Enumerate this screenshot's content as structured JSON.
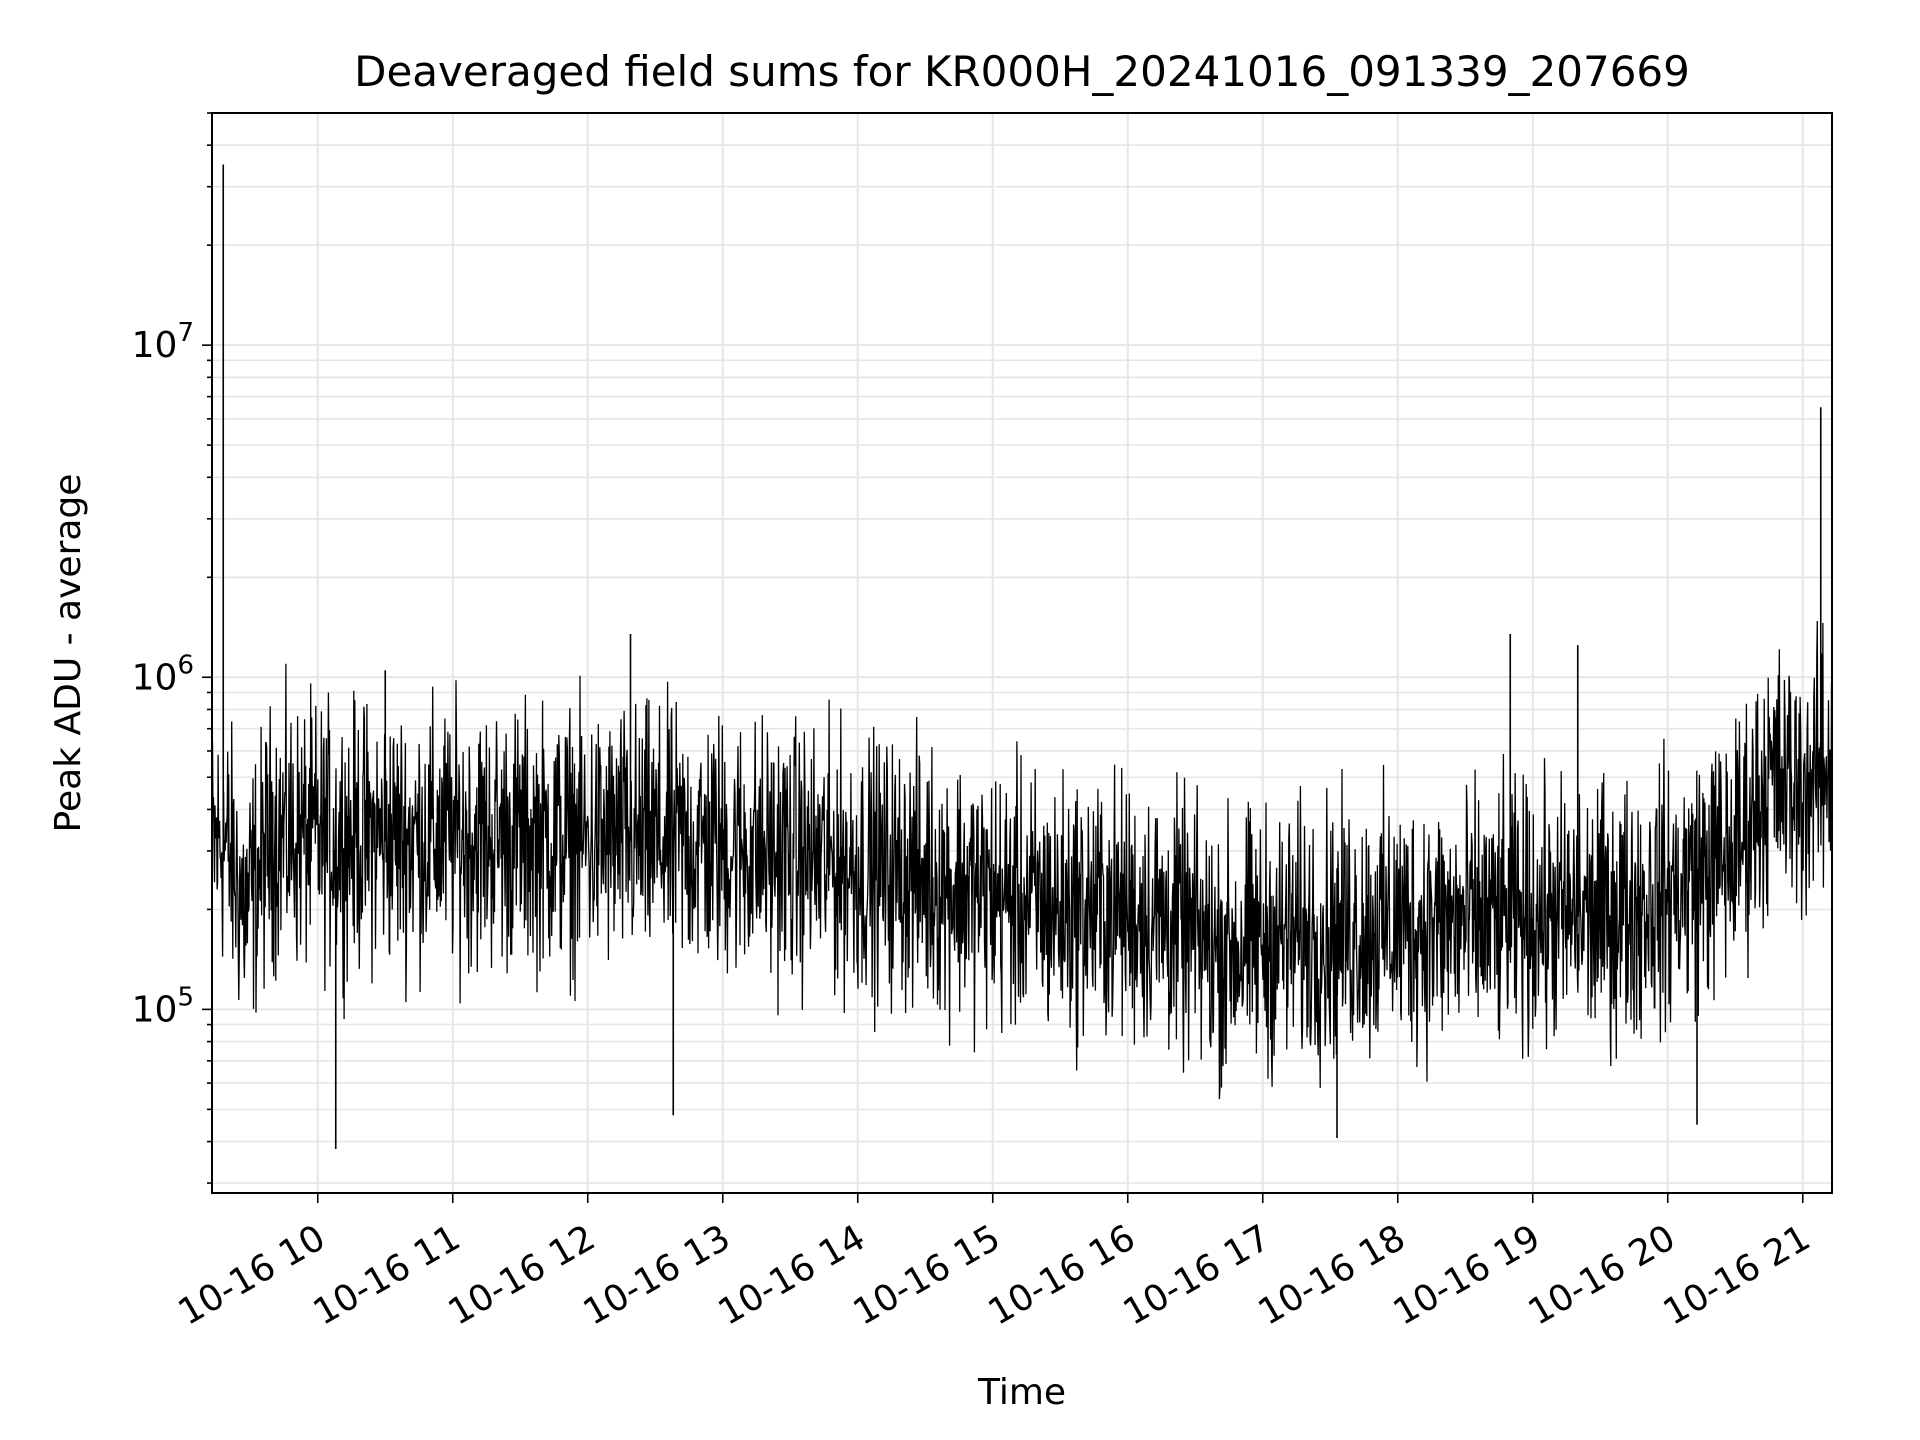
{
  "chart_data": {
    "type": "line",
    "title": "Deaveraged field sums for KR000H_20241016_091339_207669",
    "xlabel": "Time",
    "ylabel": "Peak ADU - average",
    "yscale": "log",
    "ylim": [
      28000,
      50000000
    ],
    "xlim": [
      "2024-10-16 09:13",
      "2024-10-16 21:13"
    ],
    "grid": true,
    "line_color": "#000000",
    "grid_color": "#e6e6e6",
    "x_ticks": [
      {
        "x": "2024-10-16 10:00",
        "label": "10-16 10"
      },
      {
        "x": "2024-10-16 11:00",
        "label": "10-16 11"
      },
      {
        "x": "2024-10-16 12:00",
        "label": "10-16 12"
      },
      {
        "x": "2024-10-16 13:00",
        "label": "10-16 13"
      },
      {
        "x": "2024-10-16 14:00",
        "label": "10-16 14"
      },
      {
        "x": "2024-10-16 15:00",
        "label": "10-16 15"
      },
      {
        "x": "2024-10-16 16:00",
        "label": "10-16 16"
      },
      {
        "x": "2024-10-16 17:00",
        "label": "10-16 17"
      },
      {
        "x": "2024-10-16 18:00",
        "label": "10-16 18"
      },
      {
        "x": "2024-10-16 19:00",
        "label": "10-16 19"
      },
      {
        "x": "2024-10-16 20:00",
        "label": "10-16 20"
      },
      {
        "x": "2024-10-16 21:00",
        "label": "10-16 21"
      }
    ],
    "y_ticks": [
      {
        "y": 100000,
        "base": "10",
        "exp": "5"
      },
      {
        "y": 1000000,
        "base": "10",
        "exp": "6"
      },
      {
        "y": 10000000,
        "base": "10",
        "exp": "7"
      }
    ],
    "series": [
      {
        "x": [
          "2024-10-16 09:13",
          "2024-10-16 09:18",
          "2024-10-16 09:28",
          "2024-10-16 09:40",
          "2024-10-16 09:50",
          "2024-10-16 10:00",
          "2024-10-16 10:30",
          "2024-10-16 11:00",
          "2024-10-16 11:30",
          "2024-10-16 12:00",
          "2024-10-16 12:30",
          "2024-10-16 13:00",
          "2024-10-16 13:30",
          "2024-10-16 14:00",
          "2024-10-16 14:30",
          "2024-10-16 15:00",
          "2024-10-16 15:30",
          "2024-10-16 16:00",
          "2024-10-16 16:20",
          "2024-10-16 16:40",
          "2024-10-16 17:00",
          "2024-10-16 17:30",
          "2024-10-16 18:00",
          "2024-10-16 18:30",
          "2024-10-16 19:00",
          "2024-10-16 19:30",
          "2024-10-16 20:00",
          "2024-10-16 20:30",
          "2024-10-16 20:45",
          "2024-10-16 21:00",
          "2024-10-16 21:13"
        ],
        "y": [
          300000,
          330000,
          200000,
          340000,
          330000,
          330000,
          330000,
          330000,
          330000,
          320000,
          320000,
          310000,
          290000,
          270000,
          250000,
          220000,
          200000,
          200000,
          180000,
          150000,
          160000,
          170000,
          180000,
          180000,
          190000,
          190000,
          220000,
          300000,
          500000,
          460000,
          550000
        ],
        "spikes": [
          {
            "x": "2024-10-16 09:18",
            "y": 35000000
          },
          {
            "x": "2024-10-16 10:08",
            "y": 38000
          },
          {
            "x": "2024-10-16 10:30",
            "y": 1050000
          },
          {
            "x": "2024-10-16 12:19",
            "y": 1350000
          },
          {
            "x": "2024-10-16 12:38",
            "y": 48000
          },
          {
            "x": "2024-10-16 17:33",
            "y": 41000
          },
          {
            "x": "2024-10-16 18:50",
            "y": 1350000
          },
          {
            "x": "2024-10-16 19:20",
            "y": 1250000
          },
          {
            "x": "2024-10-16 20:13",
            "y": 45000
          },
          {
            "x": "2024-10-16 21:08",
            "y": 6500000
          }
        ]
      }
    ]
  }
}
